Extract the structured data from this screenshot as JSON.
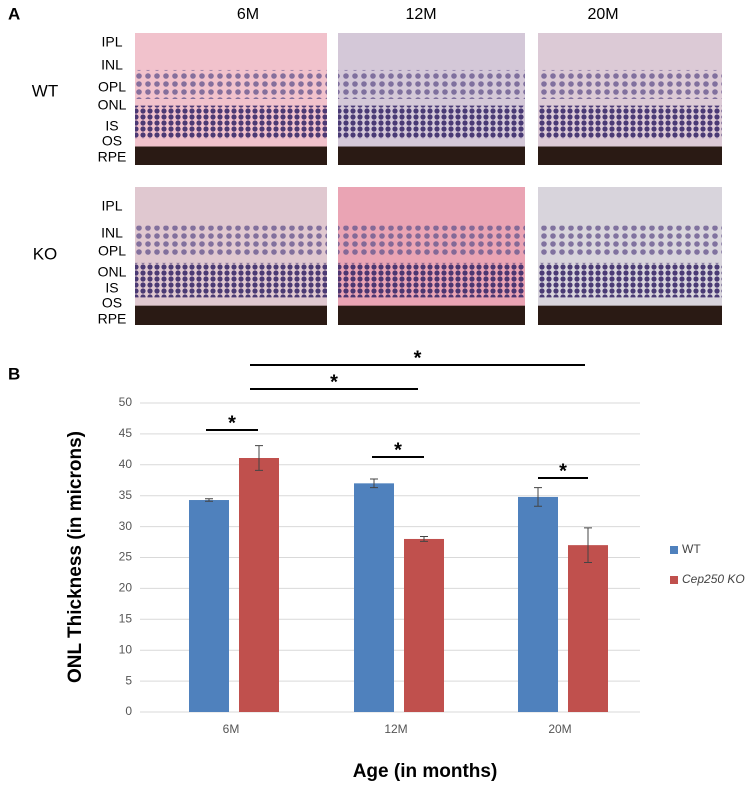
{
  "panel_a": {
    "label": "A",
    "columns": [
      "6M",
      "12M",
      "20M"
    ],
    "rows": [
      "WT",
      "KO"
    ],
    "layers": [
      "IPL",
      "INL",
      "OPL",
      "ONL",
      "IS",
      "OS",
      "RPE"
    ]
  },
  "panel_b": {
    "label": "B"
  },
  "chart_data": {
    "type": "bar",
    "x_label": "Age (in months)",
    "y_label": "ONL Thickness (in microns)",
    "categories": [
      "6M",
      "12M",
      "20M"
    ],
    "series": [
      {
        "name": "WT",
        "color": "#4f81bd",
        "values": [
          34.3,
          37,
          34.8
        ],
        "errors": [
          0.2,
          0.7,
          1.5
        ]
      },
      {
        "name": "Cep250 KO",
        "color": "#c0504d",
        "values": [
          41.1,
          28,
          27
        ],
        "errors": [
          2,
          0.4,
          2.8
        ]
      }
    ],
    "ylim": [
      0,
      50
    ],
    "yticks": [
      0,
      5,
      10,
      15,
      20,
      25,
      30,
      35,
      40,
      45,
      50
    ],
    "grid": true,
    "legend": "right",
    "annotations": [
      "*",
      "*",
      "*",
      "*",
      "*"
    ]
  }
}
